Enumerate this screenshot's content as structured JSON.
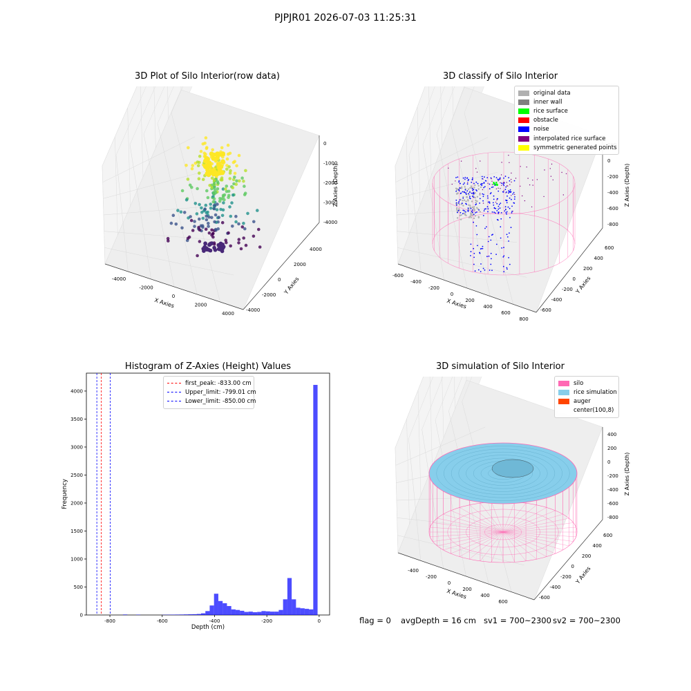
{
  "header": {
    "title": "PJPJR01 2026-07-03 11:25:31"
  },
  "panels": {
    "raw": {
      "title": "3D Plot of Silo Interior(row data)",
      "xlabel": "X Axies",
      "ylabel": "Y Axies",
      "zlabel": "Z Axies (Depth)",
      "xticks": [
        "-4000",
        "-2000",
        "0",
        "2000",
        "4000"
      ],
      "yticks": [
        "-4000",
        "-2000",
        "0",
        "2000",
        "4000"
      ],
      "zticks": [
        "0",
        "-1000",
        "-2000",
        "-3000",
        "-4000"
      ]
    },
    "classify": {
      "title": "3D classify of Silo Interior",
      "xlabel": "X Axies",
      "ylabel": "Y Axies",
      "zlabel": "Z Axies (Depth)",
      "xticks": [
        "-600",
        "-400",
        "-200",
        "0",
        "200",
        "400",
        "600",
        "800"
      ],
      "yticks": [
        "-600",
        "-400",
        "-200",
        "0",
        "200",
        "400",
        "600"
      ],
      "zticks": [
        "200",
        "0",
        "-200",
        "-400",
        "-600",
        "-800"
      ]
    },
    "hist": {
      "title": "Histogram of Z-Axies (Height) Values"
    },
    "sim": {
      "title": "3D simulation of Silo Interior",
      "xlabel": "X Axies",
      "ylabel": "Y Axies",
      "zlabel": "Z Axies (Depth)",
      "xticks": [
        "-400",
        "-200",
        "0",
        "200",
        "400",
        "600"
      ],
      "yticks": [
        "-600",
        "-400",
        "-200",
        "0",
        "200",
        "400",
        "600"
      ],
      "zticks": [
        "400",
        "200",
        "0",
        "-200",
        "-400",
        "-600",
        "-800"
      ]
    }
  },
  "legends": {
    "classify": [
      {
        "label": "original data",
        "color": "#b0b0b0"
      },
      {
        "label": "inner wall",
        "color": "#808080"
      },
      {
        "label": "rice surface",
        "color": "#00ff00"
      },
      {
        "label": "obstacle",
        "color": "#ff0000"
      },
      {
        "label": "noise",
        "color": "#0000ff"
      },
      {
        "label": "interpolated rice surface",
        "color": "#800080"
      },
      {
        "label": "symmetric generated points",
        "color": "#ffff00"
      }
    ],
    "sim": [
      {
        "label": "silo",
        "color": "#ff69b4"
      },
      {
        "label": "rice simulation",
        "color": "#87ceeb"
      },
      {
        "label": "auger",
        "color": "#ff4500"
      },
      {
        "label": "center(100,8)",
        "color": "#ffffff"
      }
    ]
  },
  "status": {
    "flag": "flag = 0",
    "avg_depth": "avgDepth = 16 cm",
    "sv1": "sv1 = 700~2300",
    "sv2": "sv2 = 700~2300"
  },
  "chart_data": {
    "type": "bar",
    "title": "Histogram of Z-Axies (Height) Values",
    "xlabel": "Depth (cm)",
    "ylabel": "Frequency",
    "xlim": [
      -890,
      40
    ],
    "ylim": [
      0,
      4320
    ],
    "xticks": [
      -800,
      -600,
      -400,
      -200,
      0
    ],
    "yticks": [
      0,
      500,
      1000,
      1500,
      2000,
      2500,
      3000,
      3500,
      4000
    ],
    "bar_color": "#0000ff",
    "bin_width": 16.5,
    "bin_starts": [
      -750,
      -700,
      -600,
      -583.5,
      -567,
      -550.5,
      -534,
      -517.5,
      -501,
      -484.5,
      -468,
      -451.5,
      -435,
      -418.5,
      -402,
      -385.5,
      -369,
      -352.5,
      -336,
      -319.5,
      -303,
      -286.5,
      -270,
      -253.5,
      -237,
      -220.5,
      -204,
      -187.5,
      -171,
      -154.5,
      -138,
      -121.5,
      -105,
      -88.5,
      -72,
      -55.5,
      -39,
      -22.5,
      -6
    ],
    "values": [
      8,
      6,
      4,
      5,
      6,
      7,
      8,
      10,
      12,
      14,
      18,
      30,
      70,
      170,
      380,
      250,
      210,
      160,
      100,
      90,
      75,
      55,
      60,
      50,
      55,
      70,
      65,
      60,
      60,
      90,
      280,
      660,
      280,
      130,
      120,
      110,
      100,
      4110,
      0
    ],
    "vlines": [
      {
        "x": -833.0,
        "color": "#ff0000",
        "label": "first_peak: -833.00 cm"
      },
      {
        "x": -799.01,
        "color": "#0000ff",
        "label": "Upper_limit: -799.01 cm"
      },
      {
        "x": -850.0,
        "color": "#0000ff",
        "label": "Lower_limit: -850.00 cm"
      }
    ],
    "legend_position": "upper-center"
  }
}
